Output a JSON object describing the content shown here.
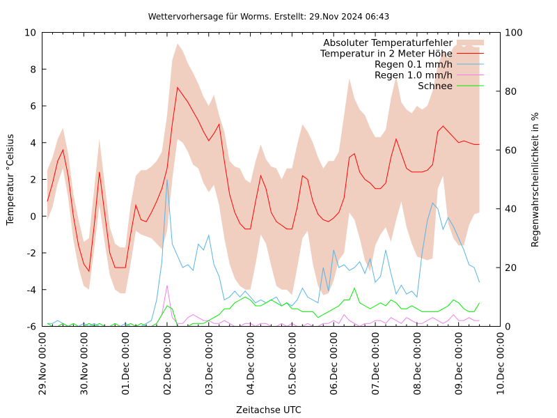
{
  "chart_data": {
    "type": "line",
    "title": "Wettervorhersage für Worms. Erstellt: 29.Nov 2024 06:43",
    "xlabel": "Zeitachse UTC",
    "ylabel": "Temperatur °Celsius",
    "y2label": "Regenwahrscheinlichkeit in %",
    "x_unit": "hours since 29.Nov 00:00 UTC",
    "xlim": [
      0,
      264
    ],
    "ylim": [
      -6,
      10
    ],
    "y2lim": [
      0,
      100
    ],
    "grid": false,
    "legend_position": "top-right",
    "x_ticks": [
      {
        "value": 0,
        "label": "29.Nov 00:00"
      },
      {
        "value": 24,
        "label": "30.Nov 00:00"
      },
      {
        "value": 48,
        "label": "01.Dec 00:00"
      },
      {
        "value": 72,
        "label": "02.Dec 00:00"
      },
      {
        "value": 96,
        "label": "03.Dec 00:00"
      },
      {
        "value": 120,
        "label": "04.Dec 00:00"
      },
      {
        "value": 144,
        "label": "05.Dec 00:00"
      },
      {
        "value": 168,
        "label": "06.Dec 00:00"
      },
      {
        "value": 192,
        "label": "07.Dec 00:00"
      },
      {
        "value": 216,
        "label": "08.Dec 00:00"
      },
      {
        "value": 240,
        "label": "09.Dec 00:00"
      },
      {
        "value": 264,
        "label": "10.Dec 00:00"
      }
    ],
    "y_ticks": [
      -6,
      -4,
      -2,
      0,
      2,
      4,
      6,
      8,
      10
    ],
    "y2_ticks": [
      0,
      20,
      40,
      60,
      80,
      100
    ],
    "x": [
      3,
      6,
      9,
      12,
      15,
      18,
      21,
      24,
      27,
      30,
      33,
      36,
      39,
      42,
      45,
      48,
      51,
      54,
      57,
      60,
      63,
      66,
      69,
      72,
      75,
      78,
      81,
      84,
      87,
      90,
      93,
      96,
      99,
      102,
      105,
      108,
      111,
      114,
      117,
      120,
      123,
      126,
      129,
      132,
      135,
      138,
      141,
      144,
      147,
      150,
      153,
      156,
      159,
      162,
      165,
      168,
      171,
      174,
      177,
      180,
      183,
      186,
      189,
      192,
      195,
      198,
      201,
      204,
      207,
      210,
      213,
      216,
      219,
      222,
      225,
      228,
      231,
      234,
      237,
      240,
      243,
      246,
      249,
      252
    ],
    "series": [
      {
        "name": "Temperatur in 2 Meter Höhe",
        "axis": "y",
        "color": "#ff0000",
        "values": [
          0.8,
          1.8,
          3.0,
          3.6,
          2.2,
          0.0,
          -1.6,
          -2.6,
          -3.0,
          -0.5,
          2.4,
          0.2,
          -2.0,
          -2.8,
          -2.8,
          -2.8,
          -1.0,
          0.6,
          -0.2,
          -0.3,
          0.2,
          0.8,
          1.5,
          2.6,
          5.0,
          7.0,
          6.6,
          6.2,
          5.7,
          5.2,
          4.6,
          4.1,
          4.5,
          5.0,
          3.0,
          1.2,
          0.2,
          -0.4,
          -0.7,
          -0.7,
          0.8,
          2.2,
          1.5,
          0.2,
          -0.3,
          -0.5,
          -0.7,
          -0.7,
          0.5,
          2.2,
          2.0,
          0.8,
          0.1,
          -0.2,
          -0.3,
          -0.1,
          0.2,
          1.0,
          3.2,
          3.4,
          2.4,
          2.0,
          1.8,
          1.5,
          1.5,
          1.8,
          3.2,
          4.2,
          3.4,
          2.6,
          2.4,
          2.4,
          2.4,
          2.5,
          2.8,
          4.6,
          4.9,
          4.6,
          4.3,
          4.0,
          4.1,
          4.0,
          3.9,
          3.9
        ]
      },
      {
        "name": "Absoluter Temperaturfehler",
        "axis": "y",
        "type": "band",
        "color": "#f0cfc0",
        "upper": [
          2.5,
          3.2,
          4.2,
          4.8,
          3.4,
          1.2,
          -0.2,
          -1.4,
          -1.2,
          1.5,
          4.2,
          1.8,
          -0.6,
          -1.5,
          -1.7,
          -1.7,
          0.6,
          2.2,
          2.5,
          2.5,
          2.7,
          3.0,
          3.5,
          5.5,
          8.5,
          9.4,
          9.0,
          8.3,
          7.8,
          7.2,
          6.5,
          6.0,
          6.6,
          5.5,
          4.6,
          3.0,
          2.7,
          2.6,
          2.0,
          1.8,
          3.0,
          3.9,
          3.1,
          2.7,
          2.6,
          2.0,
          2.6,
          2.6,
          3.9,
          5.0,
          4.6,
          4.0,
          3.2,
          2.6,
          3.0,
          3.0,
          3.5,
          5.5,
          7.5,
          6.4,
          5.8,
          5.5,
          4.8,
          4.3,
          4.3,
          4.7,
          6.4,
          7.6,
          6.2,
          5.8,
          5.6,
          6.0,
          5.8,
          6.0,
          6.8,
          8.2,
          9.0,
          8.6,
          9.2,
          9.4,
          9.2,
          9.4,
          9.2,
          9.2
        ]
      },
      {
        "name": "Absoluter Temperaturfehler (untere Grenze)",
        "axis": "y",
        "type": "band-lower",
        "values": [
          -0.2,
          0.5,
          1.8,
          2.6,
          1.0,
          -1.3,
          -2.8,
          -3.8,
          -4.0,
          -1.8,
          0.6,
          -1.4,
          -3.2,
          -4.0,
          -4.2,
          -4.2,
          -2.6,
          -0.8,
          -1.0,
          -1.1,
          -1.2,
          -1.5,
          -1.8,
          -0.8,
          2.0,
          4.2,
          4.0,
          3.5,
          2.8,
          2.6,
          1.8,
          1.3,
          1.7,
          0.6,
          -1.2,
          -2.6,
          -3.4,
          -3.8,
          -4.0,
          -4.0,
          -2.6,
          -1.0,
          -1.5,
          -2.7,
          -3.8,
          -4.0,
          -4.0,
          -4.3,
          -2.8,
          -1.2,
          -0.8,
          -2.6,
          -3.8,
          -4.3,
          -4.2,
          -3.5,
          -2.4,
          -2.0,
          0.2,
          -0.2,
          -1.2,
          -2.4,
          -3.0,
          -1.6,
          -1.0,
          -0.6,
          -1.4,
          -0.2,
          0.8,
          -0.6,
          -1.5,
          -2.2,
          -2.3,
          -2.4,
          -2.3,
          1.5,
          2.2,
          -0.4,
          -1.2,
          -1.6,
          -1.6,
          -0.5,
          0.1,
          0.2
        ]
      },
      {
        "name": "Regen 0.1 mm/h",
        "axis": "y2",
        "color": "#56b4e9",
        "values": [
          1,
          1,
          2,
          1,
          0,
          0,
          0,
          1,
          0,
          1,
          0,
          0,
          0,
          0,
          0,
          1,
          0,
          0,
          0,
          1,
          2,
          9,
          22,
          50,
          28,
          24,
          20,
          21,
          19,
          28,
          26,
          31,
          21,
          17,
          9,
          10,
          12,
          10,
          12,
          10,
          8,
          9,
          8,
          9,
          10,
          7,
          8,
          7,
          9,
          13,
          10,
          9,
          8,
          20,
          12,
          26,
          20,
          21,
          19,
          20,
          22,
          18,
          23,
          15,
          17,
          26,
          18,
          11,
          14,
          11,
          12,
          10,
          25,
          36,
          42,
          40,
          33,
          37,
          34,
          30,
          26,
          21,
          20,
          15
        ]
      },
      {
        "name": "Regen 1.0 mm/h",
        "axis": "y2",
        "color": "#ee82ee",
        "values": [
          0,
          0,
          0,
          1,
          0,
          0,
          0,
          0,
          0,
          0,
          0,
          0,
          0,
          0,
          0,
          0,
          0,
          0,
          0,
          0,
          0,
          1,
          4,
          14,
          3,
          1,
          1,
          3,
          4,
          3,
          2,
          2,
          1,
          1,
          2,
          1,
          0,
          0,
          1,
          1,
          0,
          1,
          1,
          0,
          0,
          1,
          0,
          1,
          0,
          0,
          1,
          0,
          0,
          1,
          1,
          2,
          1,
          4,
          2,
          1,
          0,
          1,
          1,
          2,
          2,
          1,
          3,
          2,
          1,
          3,
          2,
          1,
          1,
          2,
          3,
          2,
          1,
          2,
          4,
          2,
          2,
          3,
          2,
          2
        ]
      },
      {
        "name": "Schnee",
        "axis": "y2",
        "color": "#00ee00",
        "values": [
          1,
          0,
          0,
          1,
          0,
          1,
          0,
          0,
          1,
          0,
          1,
          0,
          0,
          1,
          0,
          0,
          1,
          0,
          1,
          0,
          0,
          1,
          4,
          7,
          6,
          0,
          0,
          0,
          1,
          1,
          1,
          2,
          3,
          4,
          6,
          6,
          8,
          9,
          10,
          9,
          7,
          7,
          8,
          9,
          8,
          7,
          8,
          6,
          6,
          5,
          5,
          5,
          3,
          4,
          5,
          6,
          7,
          9,
          9,
          13,
          8,
          7,
          6,
          7,
          8,
          7,
          9,
          8,
          6,
          6,
          7,
          6,
          5,
          5,
          5,
          5,
          6,
          7,
          9,
          8,
          6,
          5,
          5,
          8
        ]
      }
    ],
    "legend": [
      {
        "label": "Absoluter Temperaturfehler",
        "kind": "box",
        "color": "#f0cfc0"
      },
      {
        "label": "Temperatur in 2 Meter Höhe",
        "kind": "line",
        "color": "#ff0000"
      },
      {
        "label": "Regen 0.1 mm/h",
        "kind": "line",
        "color": "#56b4e9"
      },
      {
        "label": "Regen 1.0 mm/h",
        "kind": "line",
        "color": "#ee82ee"
      },
      {
        "label": "Schnee",
        "kind": "line",
        "color": "#00ee00"
      }
    ]
  }
}
